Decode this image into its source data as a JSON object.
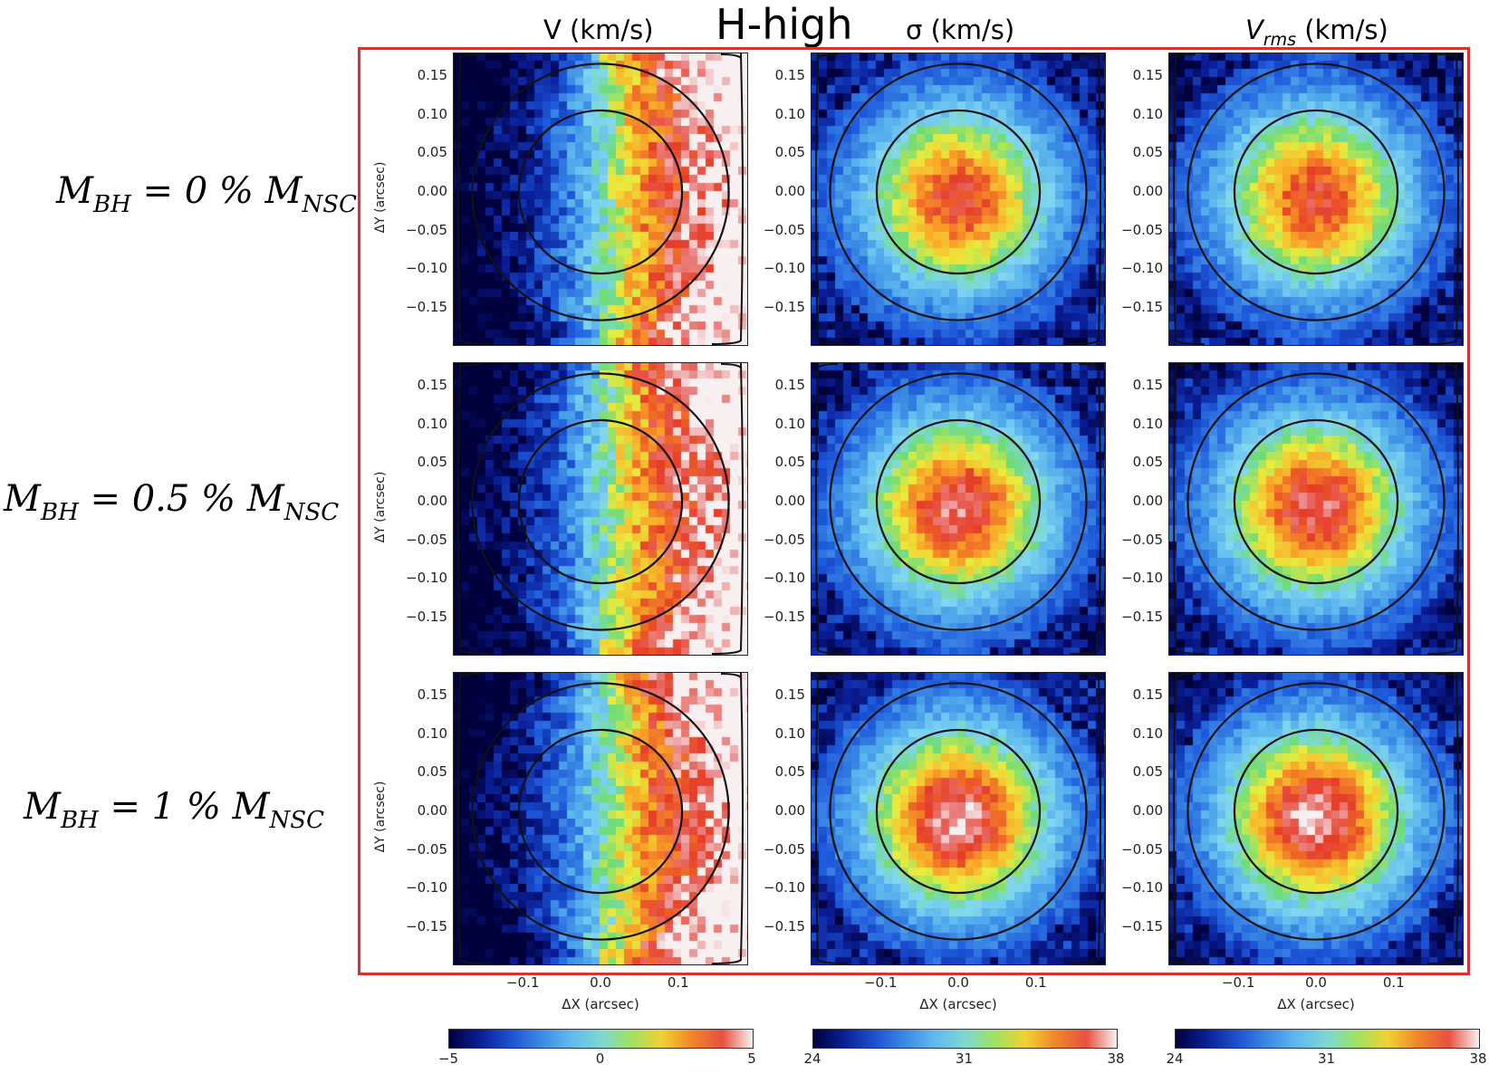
{
  "figure": {
    "title": "H-high",
    "columns": [
      {
        "key": "V",
        "label": "V (km/s)"
      },
      {
        "key": "sigma",
        "label": "σ (km/s)"
      },
      {
        "key": "Vrms",
        "label_main": "V",
        "label_sub": "rms",
        "label_tail": " (km/s)"
      }
    ],
    "rows": [
      {
        "label_main": "M",
        "label_sub1": "BH",
        "label_mid": " = 0 % M",
        "label_sub2": "NSC"
      },
      {
        "label_main": "M",
        "label_sub1": "BH",
        "label_mid": " = 0.5 % M",
        "label_sub2": "NSC"
      },
      {
        "label_main": "M",
        "label_sub1": "BH",
        "label_mid": " = 1 % M",
        "label_sub2": "NSC"
      }
    ],
    "accent_frame_color": "#e0302c"
  },
  "chart_data": {
    "type": "heatmap",
    "panel_grid": [
      3,
      3
    ],
    "xlabel": "ΔX (arcsec)",
    "ylabel": "ΔY (arcsec)",
    "xlim": [
      -0.19,
      0.19
    ],
    "ylim": [
      -0.19,
      0.19
    ],
    "xticks": [
      "−0.1",
      "0.0",
      "0.1"
    ],
    "yticks": [
      "0.15",
      "0.10",
      "0.05",
      "0.00",
      "−0.05",
      "−0.10",
      "−0.15"
    ],
    "circle_radii_arcsec": [
      0.105,
      0.165
    ],
    "colormap": "jet-like",
    "colorbars": [
      {
        "column": "V",
        "min": -5,
        "max": 5,
        "ticks": [
          "−5",
          "0",
          "5"
        ]
      },
      {
        "column": "sigma",
        "min": 24,
        "max": 38,
        "ticks": [
          "24",
          "31",
          "38"
        ]
      },
      {
        "column": "Vrms",
        "min": 24,
        "max": 38,
        "ticks": [
          "24",
          "31",
          "38"
        ]
      }
    ],
    "maps": [
      {
        "row": 0,
        "column": "V",
        "kind": "rotation",
        "amplitude_kms": 5
      },
      {
        "row": 0,
        "column": "sigma",
        "kind": "dispersion",
        "center_kms": 36.5,
        "edge_kms": 26
      },
      {
        "row": 0,
        "column": "Vrms",
        "kind": "dispersion",
        "center_kms": 36.5,
        "edge_kms": 26
      },
      {
        "row": 1,
        "column": "V",
        "kind": "rotation",
        "amplitude_kms": 5
      },
      {
        "row": 1,
        "column": "sigma",
        "kind": "dispersion",
        "center_kms": 37.2,
        "edge_kms": 26
      },
      {
        "row": 1,
        "column": "Vrms",
        "kind": "dispersion",
        "center_kms": 37.2,
        "edge_kms": 26
      },
      {
        "row": 2,
        "column": "V",
        "kind": "rotation",
        "amplitude_kms": 5
      },
      {
        "row": 2,
        "column": "sigma",
        "kind": "dispersion",
        "center_kms": 37.8,
        "edge_kms": 26
      },
      {
        "row": 2,
        "column": "Vrms",
        "kind": "dispersion",
        "center_kms": 37.8,
        "edge_kms": 26
      }
    ]
  }
}
